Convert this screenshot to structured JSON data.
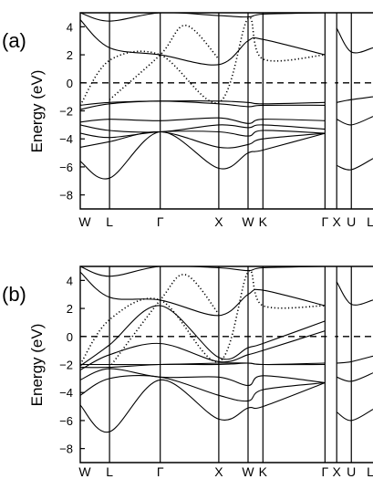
{
  "chart_data": [
    {
      "type": "line",
      "panel_label": "(a)",
      "ylabel": "Energy (eV)",
      "ylim": [
        -9,
        5
      ],
      "yticks": [
        4,
        2,
        0,
        -2,
        -4,
        -6,
        -8
      ],
      "xticks": [
        "W",
        "L",
        "Γ",
        "X",
        "W",
        "K",
        "Γ",
        "X",
        "U",
        "L"
      ],
      "x_positions": [
        0,
        0.5,
        1.366,
        2.366,
        2.866,
        3.12,
        4.18,
        4.38,
        4.63,
        5.0
      ],
      "fermi_level": 0,
      "series": [
        {
          "style": "solid",
          "x": [
            0,
            0.5,
            1.366,
            2.366,
            2.866,
            3.12,
            4.18
          ],
          "y": [
            -1.6,
            -1.4,
            -1.3,
            -1.3,
            -1.4,
            -1.5,
            -1.4
          ]
        },
        {
          "style": "solid",
          "x": [
            0,
            0.5,
            1.366,
            2.366,
            2.866,
            3.12,
            4.18
          ],
          "y": [
            -1.9,
            -1.5,
            -1.3,
            -1.5,
            -1.7,
            -1.6,
            -1.6
          ]
        },
        {
          "style": "solid",
          "x": [
            0,
            0.5,
            1.366,
            2.366,
            2.866,
            3.12,
            4.18
          ],
          "y": [
            -2.8,
            -2.6,
            -2.7,
            -2.5,
            -2.9,
            -2.6,
            -2.7
          ]
        },
        {
          "style": "solid",
          "x": [
            0,
            0.5,
            1.366,
            2.366,
            2.866,
            3.12,
            4.18
          ],
          "y": [
            -3.0,
            -3.4,
            -3.5,
            -3.0,
            -3.2,
            -3.0,
            -3.3
          ]
        },
        {
          "style": "solid",
          "x": [
            0,
            0.5,
            1.366,
            2.366,
            2.866,
            3.12,
            4.18
          ],
          "y": [
            -3.6,
            -3.9,
            -3.5,
            -3.5,
            -3.8,
            -3.4,
            -3.6
          ]
        },
        {
          "style": "solid",
          "x": [
            0,
            0.5,
            1.366,
            2.366,
            2.866,
            3.12,
            4.18
          ],
          "y": [
            -4.6,
            -4.2,
            -3.5,
            -4.6,
            -4.4,
            -4.0,
            -3.6
          ]
        },
        {
          "style": "solid",
          "x": [
            0,
            0.5,
            1.366,
            2.366,
            2.866,
            3.12,
            4.18
          ],
          "y": [
            -5.6,
            -6.8,
            -3.5,
            -6.1,
            -5.0,
            -4.8,
            -3.6
          ]
        },
        {
          "style": "solid",
          "x": [
            0,
            0.5,
            1.366,
            2.366,
            2.866,
            3.12,
            4.18
          ],
          "y": [
            4.5,
            2.5,
            2.0,
            1.3,
            3.0,
            3.1,
            2.0
          ]
        },
        {
          "style": "solid",
          "x": [
            0,
            0.5,
            1.366,
            2.366,
            2.866,
            3.12,
            4.18
          ],
          "y": [
            5.0,
            4.4,
            5.0,
            4.8,
            4.7,
            4.9,
            5.0
          ]
        },
        {
          "style": "dotted",
          "x": [
            0,
            0.5,
            1.366,
            2.366,
            2.866,
            3.12,
            4.18
          ],
          "y": [
            -1.6,
            1.6,
            2.0,
            -1.4,
            4.6,
            1.7,
            2.0
          ]
        },
        {
          "style": "dotted",
          "x": [
            0.5,
            1.366,
            1.8,
            2.366
          ],
          "y": [
            -1.2,
            2.0,
            4.1,
            1.7
          ]
        },
        {
          "style": "solid",
          "x": [
            4.38,
            4.63,
            5.0
          ],
          "y": [
            -1.4,
            -1.2,
            -1.0
          ]
        },
        {
          "style": "solid",
          "x": [
            4.38,
            4.63,
            5.0
          ],
          "y": [
            -2.6,
            -3.0,
            -2.4
          ]
        },
        {
          "style": "solid",
          "x": [
            4.38,
            4.63,
            5.0
          ],
          "y": [
            -5.9,
            -6.2,
            -5.4
          ]
        },
        {
          "style": "solid",
          "x": [
            4.38,
            4.63,
            5.0
          ],
          "y": [
            3.9,
            2.2,
            2.5
          ]
        }
      ]
    },
    {
      "type": "line",
      "panel_label": "(b)",
      "ylabel": "Energy (eV)",
      "ylim": [
        -9,
        5
      ],
      "yticks": [
        4,
        2,
        0,
        -2,
        -4,
        -6,
        -8
      ],
      "xticks": [
        "W",
        "L",
        "Γ",
        "X",
        "W",
        "K",
        "Γ",
        "X",
        "U",
        "L"
      ],
      "x_positions": [
        0,
        0.5,
        1.366,
        2.366,
        2.866,
        3.12,
        4.18,
        4.38,
        4.63,
        5.0
      ],
      "fermi_level": 0,
      "series": [
        {
          "style": "solid",
          "x": [
            0,
            0.5,
            1.366,
            2.366,
            2.866,
            3.12,
            4.18
          ],
          "y": [
            -2.0,
            -2.0,
            -2.0,
            -1.9,
            -1.9,
            -2.0,
            -1.9
          ]
        },
        {
          "style": "solid",
          "x": [
            0,
            0.5,
            1.366,
            2.366,
            2.866,
            3.12,
            4.18
          ],
          "y": [
            -2.2,
            -2.2,
            -2.0,
            -2.0,
            -1.9,
            -2.0,
            -2.0
          ]
        },
        {
          "style": "solid",
          "x": [
            0,
            0.5,
            1.366,
            2.366,
            2.866,
            3.12,
            4.18
          ],
          "y": [
            -2.4,
            -1.3,
            -0.5,
            -1.8,
            -1.3,
            -1.0,
            0.4
          ]
        },
        {
          "style": "solid",
          "x": [
            0,
            0.5,
            1.366,
            2.366,
            2.866,
            3.12,
            4.18
          ],
          "y": [
            -2.1,
            -0.6,
            2.2,
            -1.5,
            -0.8,
            -0.5,
            1.1
          ]
        },
        {
          "style": "solid",
          "x": [
            0,
            0.5,
            1.366,
            2.366,
            2.866,
            3.12,
            4.18
          ],
          "y": [
            -3.1,
            -2.3,
            -2.9,
            -2.9,
            -3.5,
            -2.8,
            -3.3
          ]
        },
        {
          "style": "solid",
          "x": [
            0,
            0.5,
            1.366,
            2.366,
            2.866,
            3.12,
            4.18
          ],
          "y": [
            -4.2,
            -3.0,
            -2.9,
            -4.2,
            -4.6,
            -3.8,
            -3.3
          ]
        },
        {
          "style": "solid",
          "x": [
            0,
            0.5,
            1.366,
            2.366,
            2.866,
            3.12,
            4.18
          ],
          "y": [
            -4.9,
            -6.8,
            -3.1,
            -5.9,
            -5.1,
            -5.0,
            -3.3
          ]
        },
        {
          "style": "solid",
          "x": [
            0,
            0.5,
            1.366,
            2.366,
            2.866,
            3.12,
            4.18
          ],
          "y": [
            4.6,
            2.8,
            2.6,
            1.5,
            3.0,
            3.3,
            2.2
          ]
        },
        {
          "style": "solid",
          "x": [
            0,
            0.5,
            1.366,
            2.366,
            2.866,
            3.12,
            4.18
          ],
          "y": [
            5.0,
            4.3,
            5.0,
            4.9,
            4.7,
            4.9,
            5.0
          ]
        },
        {
          "style": "dotted",
          "x": [
            0,
            0.5,
            1.366,
            2.366,
            2.866,
            3.12,
            4.18
          ],
          "y": [
            -2.0,
            1.2,
            2.6,
            -1.8,
            4.6,
            2.2,
            2.2
          ]
        },
        {
          "style": "dotted",
          "x": [
            0.5,
            1.366,
            1.8,
            2.366
          ],
          "y": [
            -2.2,
            2.6,
            4.4,
            1.6
          ]
        },
        {
          "style": "solid",
          "x": [
            4.38,
            4.63,
            5.0
          ],
          "y": [
            -1.9,
            -1.8,
            -1.4
          ]
        },
        {
          "style": "solid",
          "x": [
            4.38,
            4.63,
            5.0
          ],
          "y": [
            -2.9,
            -3.2,
            -2.6
          ]
        },
        {
          "style": "solid",
          "x": [
            4.38,
            4.63,
            5.0
          ],
          "y": [
            -5.4,
            -6.0,
            -5.2
          ]
        },
        {
          "style": "solid",
          "x": [
            4.38,
            4.63,
            5.0
          ],
          "y": [
            3.9,
            2.3,
            2.6
          ]
        }
      ]
    }
  ]
}
